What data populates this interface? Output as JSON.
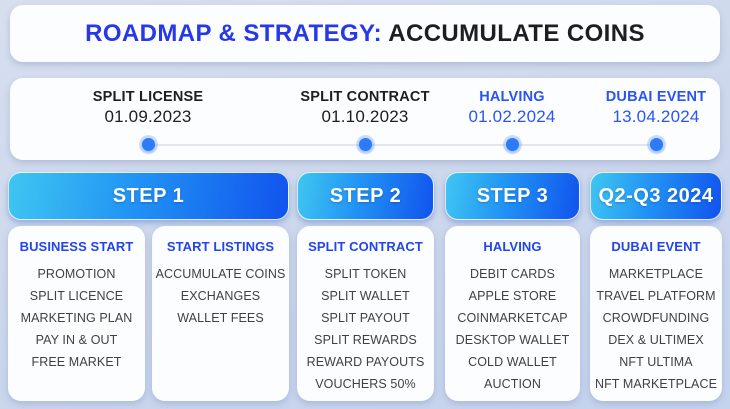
{
  "title": {
    "highlight": "ROADMAP & STRATEGY:",
    "rest": " ACCUMULATE COINS"
  },
  "timeline": {
    "milestones": [
      {
        "name": "SPLIT LICENSE",
        "date": "01.09.2023",
        "emphasis": "dark"
      },
      {
        "name": "SPLIT CONTRACT",
        "date": "01.10.2023",
        "emphasis": "dark"
      },
      {
        "name": "HALVING",
        "date": "01.02.2024",
        "emphasis": "blue"
      },
      {
        "name": "DUBAI EVENT",
        "date": "13.04.2024",
        "emphasis": "blue"
      }
    ]
  },
  "steps": [
    {
      "header": "STEP 1",
      "cards": [
        {
          "heading": "BUSINESS START",
          "items": [
            "PROMOTION",
            "SPLIT LICENCE",
            "MARKETING PLAN",
            "PAY IN & OUT",
            "FREE MARKET"
          ]
        },
        {
          "heading": "START LISTINGS",
          "items": [
            "ACCUMULATE COINS",
            "EXCHANGES",
            "WALLET FEES"
          ]
        }
      ]
    },
    {
      "header": "STEP 2",
      "cards": [
        {
          "heading": "SPLIT CONTRACT",
          "items": [
            "SPLIT TOKEN",
            "SPLIT WALLET",
            "SPLIT PAYOUT",
            "SPLIT REWARDS",
            "REWARD PAYOUTS",
            "VOUCHERS 50%"
          ]
        }
      ]
    },
    {
      "header": "STEP 3",
      "cards": [
        {
          "heading": "HALVING",
          "items": [
            "DEBIT CARDS",
            "APPLE STORE",
            "COINMARKETCAP",
            "DESKTOP WALLET",
            "COLD WALLET",
            "AUCTION"
          ]
        }
      ]
    },
    {
      "header": "Q2-Q3 2024",
      "cards": [
        {
          "heading": "DUBAI EVENT",
          "items": [
            "MARKETPLACE",
            "TRAVEL PLATFORM",
            "CROWDFUNDING",
            "DEX & ULTIMEX",
            "NFT ULTIMA",
            "NFT MARKETPLACE"
          ]
        }
      ]
    }
  ],
  "colors": {
    "title_blue": "#2638e8",
    "timeline_blue": "#2b55f2",
    "heading_blue": "#2245ec",
    "dot_blue": "#2d7bf7",
    "header_grad_start": "#3fc6f1",
    "header_grad_mid": "#2193f4",
    "header_grad_end": "#1153ee",
    "text_dark": "#1c1e24",
    "item_text": "#404046",
    "card_bg": "#fcfdfe",
    "background": "#ccd7ec"
  }
}
